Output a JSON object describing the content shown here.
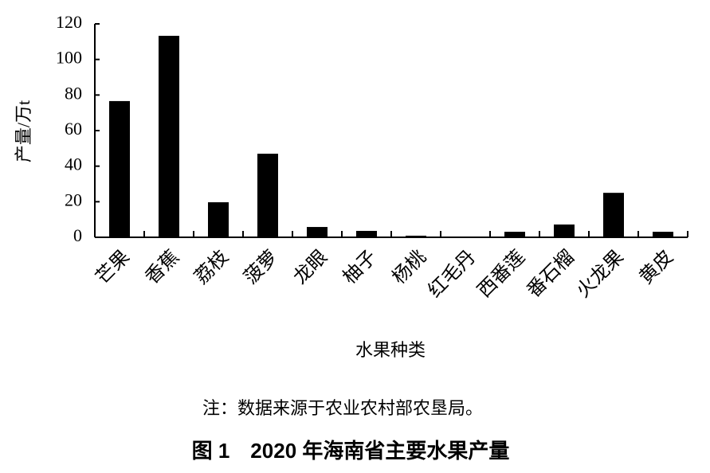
{
  "chart_data": {
    "type": "bar",
    "title": "图 1　2020 年海南省主要水果产量",
    "note": "注：数据来源于农业农村部农垦局。",
    "x_label": "水果种类",
    "y_label": "产量/万t",
    "categories": [
      "芒果",
      "香蕉",
      "荔枝",
      "菠萝",
      "龙眼",
      "柚子",
      "杨桃",
      "红毛丹",
      "西番莲",
      "番石榴",
      "火龙果",
      "黄皮"
    ],
    "values": [
      76.6,
      113.3,
      19.7,
      47,
      5.8,
      3.6,
      0.9,
      0.3,
      3.1,
      7.2,
      25,
      3.1
    ],
    "color": "#000000",
    "ylim": [
      0,
      120
    ],
    "yticks": [
      0,
      20,
      40,
      60,
      80,
      100,
      120
    ],
    "grid": false
  }
}
